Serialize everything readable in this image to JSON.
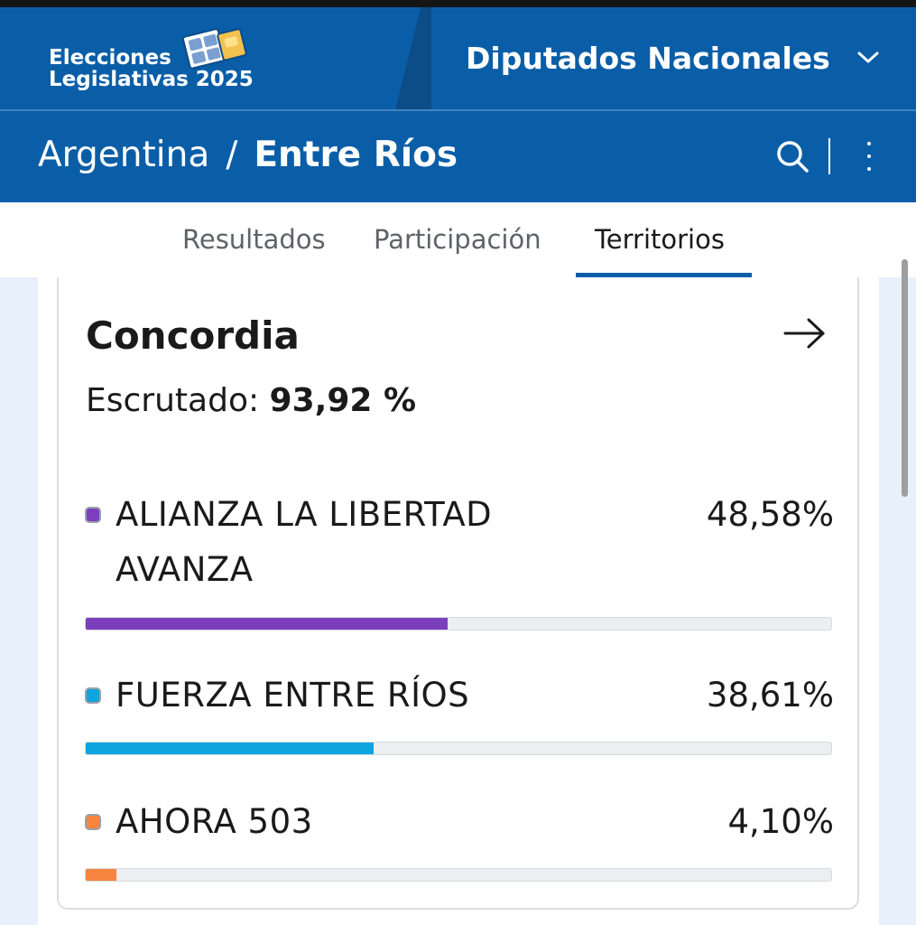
{
  "header": {
    "logo_line1": "Elecciones",
    "logo_line2": "Legislativas 2025",
    "election_type": "Diputados Nacionales"
  },
  "breadcrumb": {
    "country": "Argentina",
    "separator": "/",
    "province": "Entre Ríos"
  },
  "tabs": [
    {
      "label": "Resultados",
      "active": false
    },
    {
      "label": "Participación",
      "active": false
    },
    {
      "label": "Territorios",
      "active": true
    }
  ],
  "card": {
    "title": "Concordia",
    "scrutiny_label": "Escrutado:",
    "scrutiny_value": "93,92 %",
    "parties": [
      {
        "line1": "ALIANZA LA LIBERTAD",
        "line2": "AVANZA",
        "percent_label": "48,58%",
        "percent": 48.58,
        "color": "#7b3fbe"
      },
      {
        "line1": "FUERZA ENTRE RÍOS",
        "line2": "",
        "percent_label": "38,61%",
        "percent": 38.61,
        "color": "#0ea5e0"
      },
      {
        "line1": "AHORA 503",
        "line2": "",
        "percent_label": "4,10%",
        "percent": 4.1,
        "color": "#f7843f"
      }
    ]
  },
  "icons": {
    "dropdown": "chevron-down-icon",
    "search": "search-icon",
    "menu": "kebab-menu-icon",
    "navigate": "arrow-right-icon"
  }
}
